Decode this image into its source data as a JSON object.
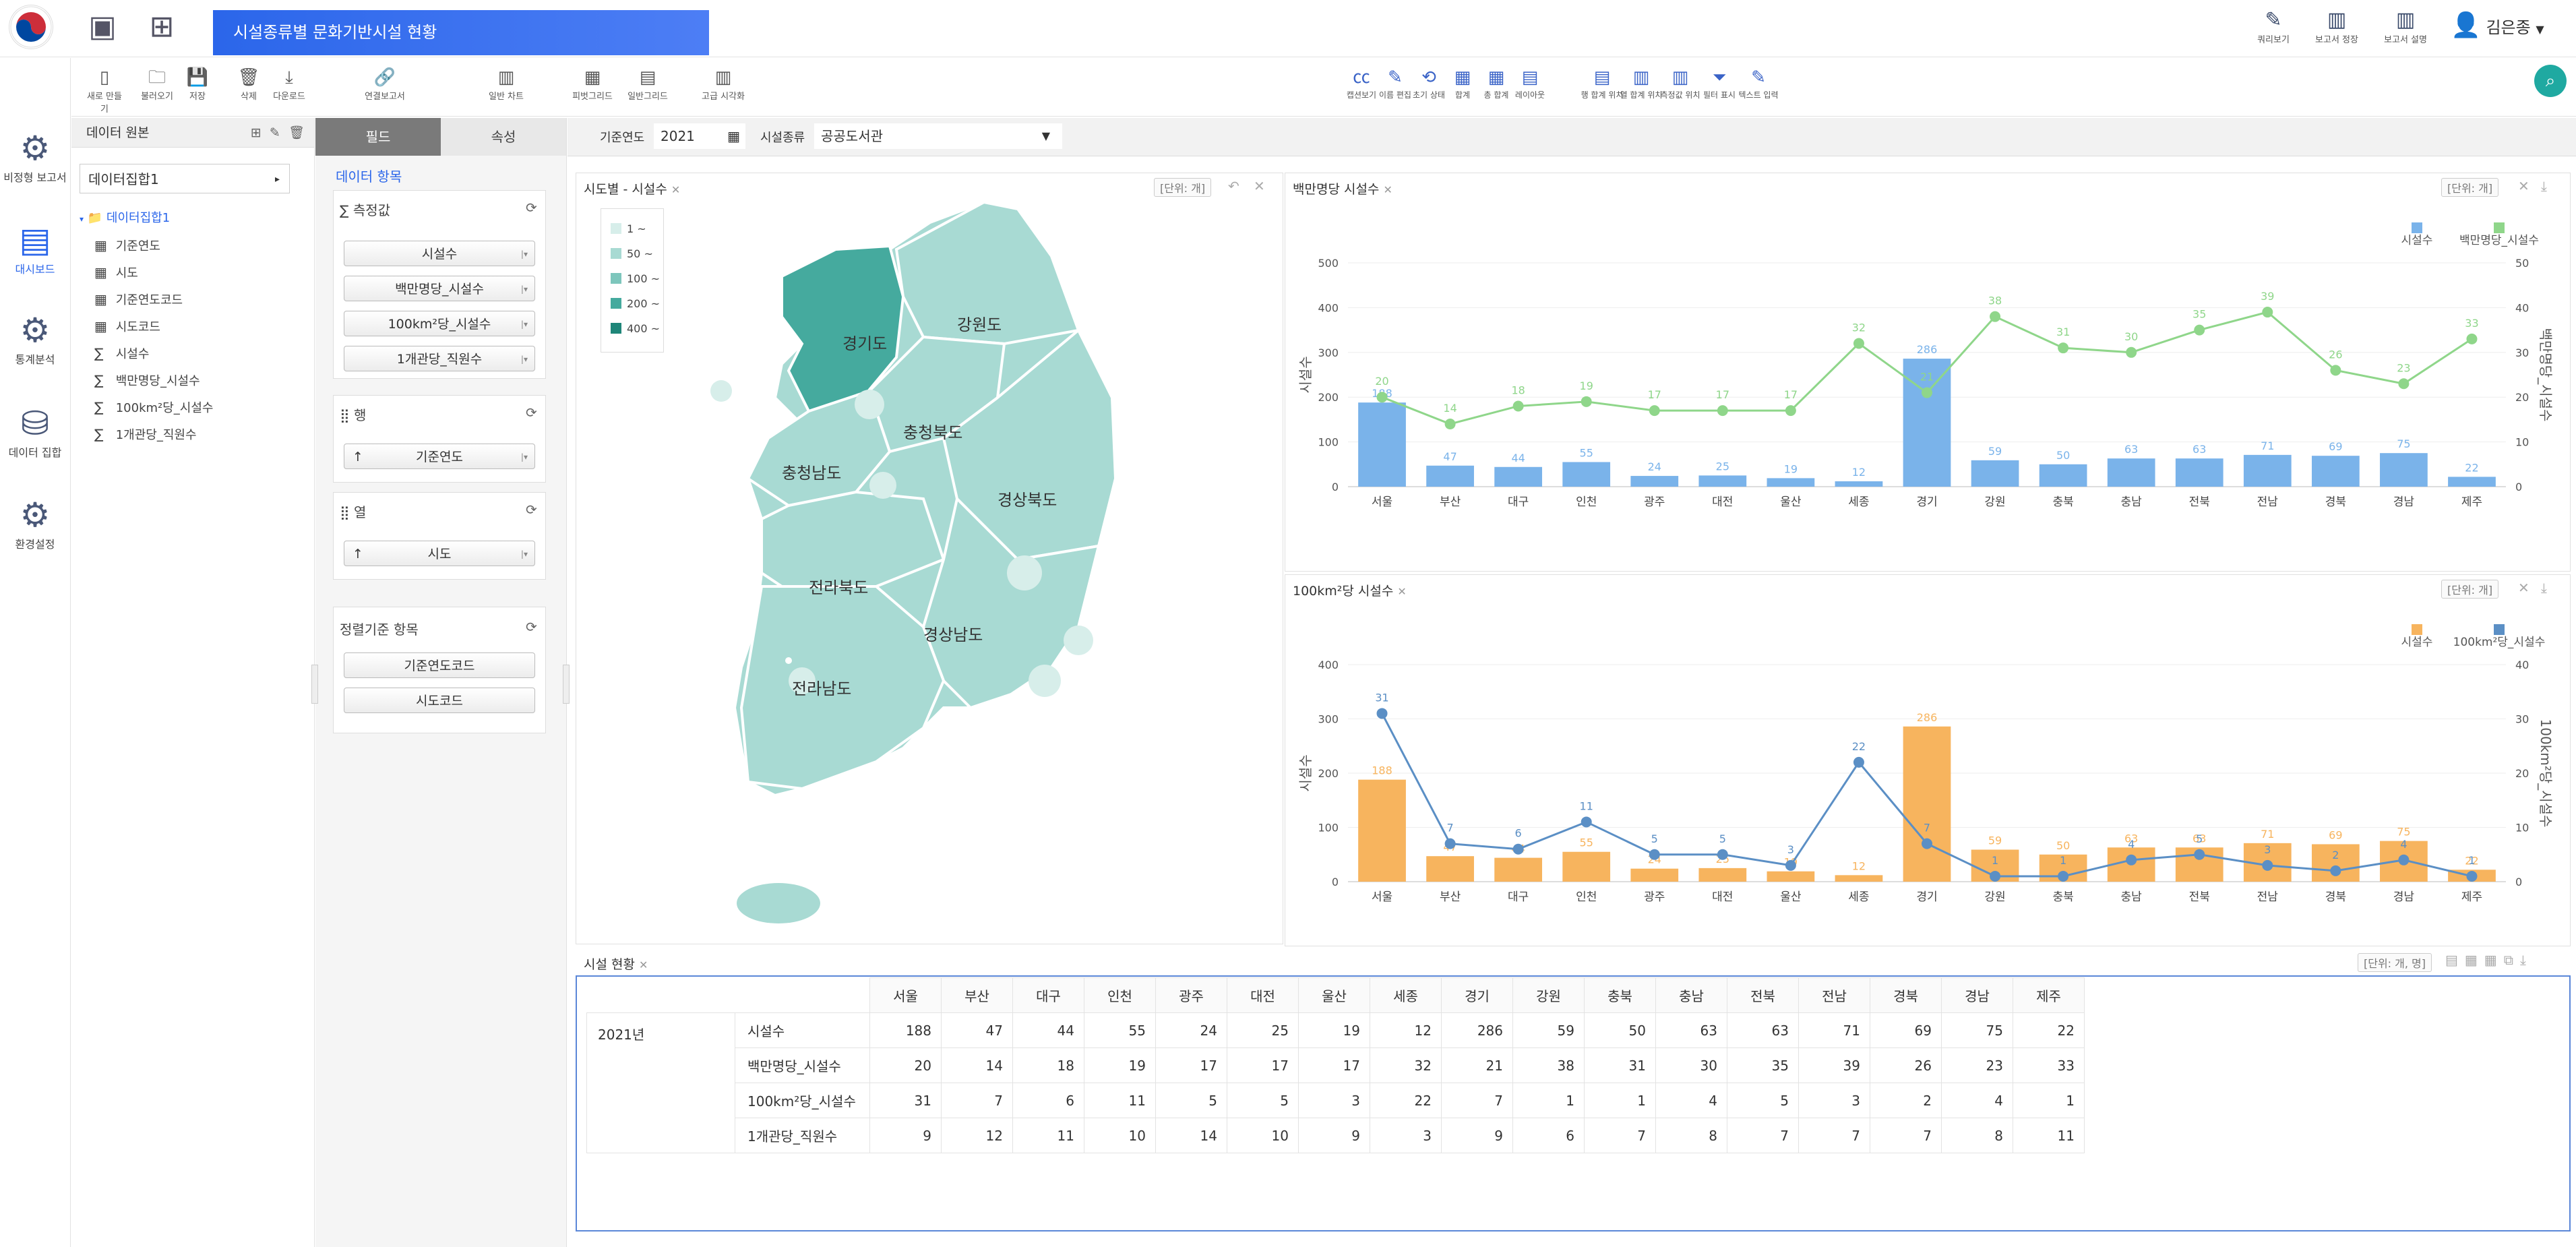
{
  "header": {
    "title": "시설종류별 문화기반시설 현황",
    "right_items": [
      "쿼리보기",
      "보고서 정장",
      "보고서 설명"
    ],
    "user_name": "김은종"
  },
  "toolbar": {
    "left": [
      "새로 만들기",
      "불러오기",
      "저장",
      "삭제",
      "다운로드",
      "연결보고서",
      "일반 차트",
      "피벗그리드",
      "일반그리드",
      "고급 시각화"
    ],
    "right": [
      "캡션보기",
      "이름 편집",
      "초기 상태",
      "합계",
      "총 합계",
      "레이아웃",
      "행 합계 위치",
      "열 합계 위치",
      "측정값 위치",
      "필터 표시",
      "텍스트 입력"
    ]
  },
  "nav": [
    "비정형 보고서",
    "대시보드",
    "통계분석",
    "데이터 집합",
    "환경설정"
  ],
  "source_panel": {
    "title": "데이터 원본",
    "dataset": "데이터집합1",
    "tree_root": "데이터집합1",
    "tree_items": [
      "기준연도",
      "시도",
      "기준연도코드",
      "시도코드",
      "시설수",
      "백만명당_시설수",
      "100km²당_시설수",
      "1개관당_직원수"
    ]
  },
  "field_panel": {
    "tab_field": "필드",
    "tab_attr": "속성",
    "data_items_label": "데이터 항목",
    "measures_label": "∑ 측정값",
    "measures": [
      "시설수",
      "백만명당_시설수",
      "100km²당_시설수",
      "1개관당_직원수"
    ],
    "rows_label": "행",
    "row_fields": [
      "기준연도"
    ],
    "cols_label": "열",
    "col_fields": [
      "시도"
    ],
    "sort_label": "정렬기준 항목",
    "sort_fields": [
      "기준연도코드",
      "시도코드"
    ]
  },
  "filters": {
    "year_label": "기준연도",
    "year_value": "2021",
    "type_label": "시설종류",
    "type_value": "공공도서관"
  },
  "map_panel": {
    "title": "시도별 - 시설수",
    "unit": "[단위: 개]",
    "legend": [
      {
        "label": "1 ~",
        "color": "#d7eeea"
      },
      {
        "label": "50 ~",
        "color": "#a8dad3"
      },
      {
        "label": "100 ~",
        "color": "#7dc6bc"
      },
      {
        "label": "200 ~",
        "color": "#45aa9e"
      },
      {
        "label": "400 ~",
        "color": "#1f8679"
      }
    ],
    "region_labels": [
      "경기도",
      "강원도",
      "충청북도",
      "충청남도",
      "경상북도",
      "전라북도",
      "경상남도",
      "전라남도"
    ]
  },
  "chart1": {
    "title": "백만명당 시설수",
    "unit": "[단위: 개]",
    "legend": [
      "시설수",
      "백만명당_시설수"
    ],
    "ylabel_left": "시설수",
    "ylabel_right": "백만명당_시설수",
    "colors": {
      "bar": "#7ab3ea",
      "line": "#8fd68a"
    }
  },
  "chart2": {
    "title": "100km²당 시설수",
    "unit": "[단위: 개]",
    "legend": [
      "시설수",
      "100km²당_시설수"
    ],
    "ylabel_left": "시설수",
    "ylabel_right": "100km²당_시설수",
    "colors": {
      "bar": "#f7b45e",
      "line": "#5b8fc5"
    }
  },
  "chart_data": [
    {
      "type": "bar",
      "title": "백만명당 시설수",
      "categories": [
        "서울",
        "부산",
        "대구",
        "인천",
        "광주",
        "대전",
        "울산",
        "세종",
        "경기",
        "강원",
        "충북",
        "충남",
        "전북",
        "전남",
        "경북",
        "경남",
        "제주"
      ],
      "series": [
        {
          "name": "시설수",
          "type": "bar",
          "axis": "left",
          "values": [
            188,
            47,
            44,
            55,
            24,
            25,
            19,
            12,
            286,
            59,
            50,
            63,
            63,
            71,
            69,
            75,
            22
          ]
        },
        {
          "name": "백만명당_시설수",
          "type": "line",
          "axis": "right",
          "values": [
            20,
            14,
            18,
            19,
            17,
            17,
            17,
            32,
            21,
            38,
            31,
            30,
            35,
            39,
            26,
            23,
            33
          ]
        }
      ],
      "ylim_left": [
        0,
        500
      ],
      "yticks_left": [
        0,
        100,
        200,
        300,
        400,
        500
      ],
      "ylim_right": [
        0,
        50
      ],
      "yticks_right": [
        0,
        10,
        20,
        30,
        40,
        50
      ],
      "ylabel": "시설수",
      "y2label": "백만명당_시설수"
    },
    {
      "type": "bar",
      "title": "100km²당 시설수",
      "categories": [
        "서울",
        "부산",
        "대구",
        "인천",
        "광주",
        "대전",
        "울산",
        "세종",
        "경기",
        "강원",
        "충북",
        "충남",
        "전북",
        "전남",
        "경북",
        "경남",
        "제주"
      ],
      "series": [
        {
          "name": "시설수",
          "type": "bar",
          "axis": "left",
          "values": [
            188,
            47,
            44,
            55,
            24,
            25,
            19,
            12,
            286,
            59,
            50,
            63,
            63,
            71,
            69,
            75,
            22
          ]
        },
        {
          "name": "100km²당_시설수",
          "type": "line",
          "axis": "right",
          "values": [
            31,
            7,
            6,
            11,
            5,
            5,
            3,
            22,
            7,
            1,
            1,
            4,
            5,
            3,
            2,
            4,
            1
          ]
        }
      ],
      "ylim_left": [
        0,
        400
      ],
      "yticks_left": [
        0,
        100,
        200,
        300,
        400
      ],
      "ylim_right": [
        0,
        40
      ],
      "yticks_right": [
        0,
        10,
        20,
        30,
        40
      ],
      "ylabel": "시설수",
      "y2label": "100km²당_시설수"
    }
  ],
  "table": {
    "title": "시설 현황",
    "unit": "[단위: 개, 명]",
    "year": "2021년",
    "columns": [
      "서울",
      "부산",
      "대구",
      "인천",
      "광주",
      "대전",
      "울산",
      "세종",
      "경기",
      "강원",
      "충북",
      "충남",
      "전북",
      "전남",
      "경북",
      "경남",
      "제주"
    ],
    "rows": [
      {
        "name": "시설수",
        "values": [
          "188",
          "47",
          "44",
          "55",
          "24",
          "25",
          "19",
          "12",
          "286",
          "59",
          "50",
          "63",
          "63",
          "71",
          "69",
          "75",
          "22"
        ]
      },
      {
        "name": "백만명당_시설수",
        "values": [
          "20",
          "14",
          "18",
          "19",
          "17",
          "17",
          "17",
          "32",
          "21",
          "38",
          "31",
          "30",
          "35",
          "39",
          "26",
          "23",
          "33"
        ]
      },
      {
        "name": "100km²당_시설수",
        "values": [
          "31",
          "7",
          "6",
          "11",
          "5",
          "5",
          "3",
          "22",
          "7",
          "1",
          "1",
          "4",
          "5",
          "3",
          "2",
          "4",
          "1"
        ]
      },
      {
        "name": "1개관당_직원수",
        "values": [
          "9",
          "12",
          "11",
          "10",
          "14",
          "10",
          "9",
          "3",
          "9",
          "6",
          "7",
          "8",
          "7",
          "7",
          "7",
          "8",
          "11"
        ]
      }
    ]
  }
}
